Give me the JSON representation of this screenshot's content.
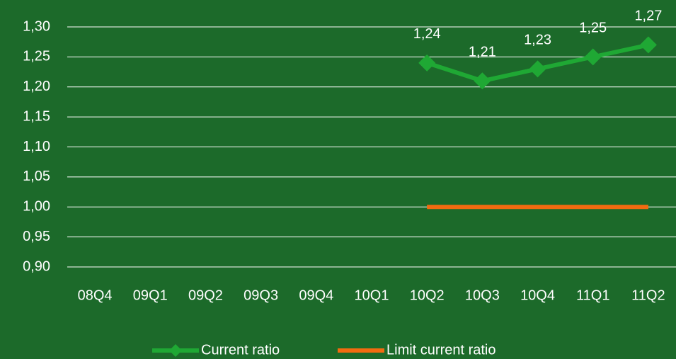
{
  "chart_data": {
    "type": "line",
    "categories": [
      "08Q4",
      "09Q1",
      "09Q2",
      "09Q3",
      "09Q4",
      "10Q1",
      "10Q2",
      "10Q3",
      "10Q4",
      "11Q1",
      "11Q2"
    ],
    "series": [
      {
        "name": "Current ratio",
        "color": "#1fa834",
        "values": [
          null,
          null,
          null,
          null,
          null,
          null,
          1.24,
          1.21,
          1.23,
          1.25,
          1.27
        ],
        "value_labels": [
          null,
          null,
          null,
          null,
          null,
          null,
          "1,24",
          "1,21",
          "1,23",
          "1,25",
          "1,27"
        ],
        "marker": "diamond"
      },
      {
        "name": "Limit current ratio",
        "color": "#f26b10",
        "values": [
          null,
          null,
          null,
          null,
          null,
          null,
          1.0,
          1.0,
          1.0,
          1.0,
          1.0
        ]
      }
    ],
    "ylim": [
      0.9,
      1.3
    ],
    "yticks": [
      {
        "value": 0.9,
        "label": "0,90"
      },
      {
        "value": 0.95,
        "label": "0,95"
      },
      {
        "value": 1.0,
        "label": "1,00"
      },
      {
        "value": 1.05,
        "label": "1,05"
      },
      {
        "value": 1.1,
        "label": "1,10"
      },
      {
        "value": 1.15,
        "label": "1,15"
      },
      {
        "value": 1.2,
        "label": "1,20"
      },
      {
        "value": 1.25,
        "label": "1,25"
      },
      {
        "value": 1.3,
        "label": "1,30"
      }
    ],
    "grid": true,
    "legend": "bottom"
  }
}
